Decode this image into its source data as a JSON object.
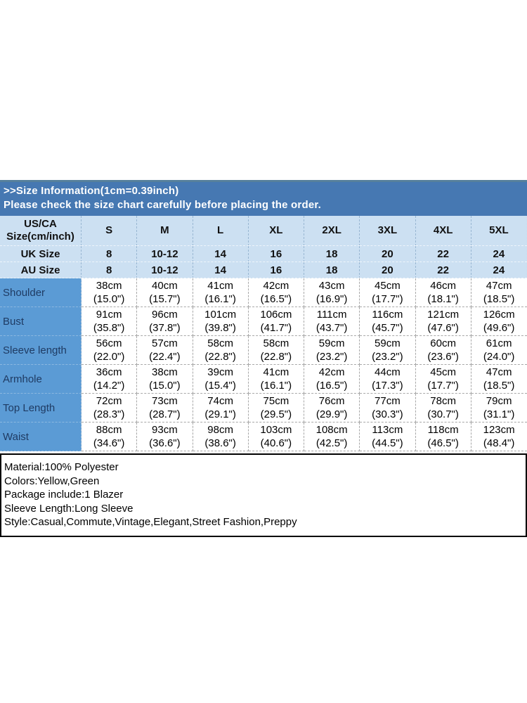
{
  "banner": {
    "title": ">>Size Information(1cm=0.39inch)",
    "subtitle": "Please check the size chart carefully before placing the order."
  },
  "colors": {
    "banner_bg": "#4678b2",
    "banner_top_edge": "#56809c",
    "header_bg": "#cce0f2",
    "row_label_bg": "#5b9bd5",
    "row_label_text": "#1f3b63",
    "body_text": "#000000"
  },
  "details": {
    "lines": [
      "Material:100% Polyester",
      "Colors:Yellow,Green",
      "Package include:1 Blazer",
      "Sleeve Length:Long Sleeve",
      "Style:Casual,Commute,Vintage,Elegant,Street Fashion,Preppy"
    ]
  },
  "chart_data": {
    "type": "table",
    "title": ">>Size Information(1cm=0.39inch)",
    "note": "Please check the size chart carefully before placing the order.",
    "corner_header": [
      "US/CA",
      "Size(cm/inch)"
    ],
    "size_columns": [
      "S",
      "M",
      "L",
      "XL",
      "2XL",
      "3XL",
      "4XL",
      "5XL"
    ],
    "rows": [
      {
        "kind": "size",
        "label": "UK Size",
        "cells": [
          [
            "8"
          ],
          [
            "10-12"
          ],
          [
            "14"
          ],
          [
            "16"
          ],
          [
            "18"
          ],
          [
            "20"
          ],
          [
            "22"
          ],
          [
            "24"
          ]
        ]
      },
      {
        "kind": "size",
        "label": "AU Size",
        "cells": [
          [
            "8"
          ],
          [
            "10-12"
          ],
          [
            "14"
          ],
          [
            "16"
          ],
          [
            "18"
          ],
          [
            "20"
          ],
          [
            "22"
          ],
          [
            "24"
          ]
        ]
      },
      {
        "kind": "measure",
        "label": "Shoulder",
        "cells": [
          [
            "38cm",
            "(15.0\")"
          ],
          [
            "40cm",
            "(15.7\")"
          ],
          [
            "41cm",
            "(16.1\")"
          ],
          [
            "42cm",
            "(16.5\")"
          ],
          [
            "43cm",
            "(16.9\")"
          ],
          [
            "45cm",
            "(17.7\")"
          ],
          [
            "46cm",
            "(18.1\")"
          ],
          [
            "47cm",
            "(18.5\")"
          ]
        ]
      },
      {
        "kind": "measure",
        "label": "Bust",
        "cells": [
          [
            "91cm",
            "(35.8\")"
          ],
          [
            "96cm",
            "(37.8\")"
          ],
          [
            "101cm",
            "(39.8\")"
          ],
          [
            "106cm",
            "(41.7\")"
          ],
          [
            "111cm",
            "(43.7\")"
          ],
          [
            "116cm",
            "(45.7\")"
          ],
          [
            "121cm",
            "(47.6\")"
          ],
          [
            "126cm",
            "(49.6\")"
          ]
        ]
      },
      {
        "kind": "measure",
        "label": "Sleeve length",
        "cells": [
          [
            "56cm",
            "(22.0\")"
          ],
          [
            "57cm",
            "(22.4\")"
          ],
          [
            "58cm",
            "(22.8\")"
          ],
          [
            "58cm",
            "(22.8\")"
          ],
          [
            "59cm",
            "(23.2\")"
          ],
          [
            "59cm",
            "(23.2\")"
          ],
          [
            "60cm",
            "(23.6\")"
          ],
          [
            "61cm",
            "(24.0\")"
          ]
        ]
      },
      {
        "kind": "measure",
        "label": "Armhole",
        "cells": [
          [
            "36cm",
            "(14.2\")"
          ],
          [
            "38cm",
            "(15.0\")"
          ],
          [
            "39cm",
            "(15.4\")"
          ],
          [
            "41cm",
            "(16.1\")"
          ],
          [
            "42cm",
            "(16.5\")"
          ],
          [
            "44cm",
            "(17.3\")"
          ],
          [
            "45cm",
            "(17.7\")"
          ],
          [
            "47cm",
            "(18.5\")"
          ]
        ]
      },
      {
        "kind": "measure",
        "label": "Top Length",
        "cells": [
          [
            "72cm",
            "(28.3\")"
          ],
          [
            "73cm",
            "(28.7\")"
          ],
          [
            "74cm",
            "(29.1\")"
          ],
          [
            "75cm",
            "(29.5\")"
          ],
          [
            "76cm",
            "(29.9\")"
          ],
          [
            "77cm",
            "(30.3\")"
          ],
          [
            "78cm",
            "(30.7\")"
          ],
          [
            "79cm",
            "(31.1\")"
          ]
        ]
      },
      {
        "kind": "measure",
        "label": "Waist",
        "cells": [
          [
            "88cm",
            "(34.6\")"
          ],
          [
            "93cm",
            "(36.6\")"
          ],
          [
            "98cm",
            "(38.6\")"
          ],
          [
            "103cm",
            "(40.6\")"
          ],
          [
            "108cm",
            "(42.5\")"
          ],
          [
            "113cm",
            "(44.5\")"
          ],
          [
            "118cm",
            "(46.5\")"
          ],
          [
            "123cm",
            "(48.4\")"
          ]
        ]
      }
    ]
  }
}
